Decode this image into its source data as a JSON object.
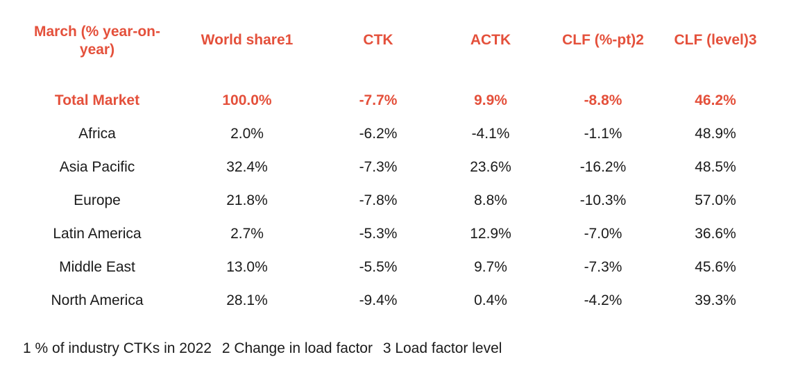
{
  "table": {
    "headers": [
      "March (% year-on-year)",
      "World share1",
      "CTK",
      "ACTK",
      "CLF (%-pt)2",
      "CLF (level)3"
    ],
    "rows": [
      [
        "Total Market",
        "100.0%",
        "-7.7%",
        "9.9%",
        "-8.8%",
        "46.2%"
      ],
      [
        "Africa",
        "2.0%",
        "-6.2%",
        "-4.1%",
        "-1.1%",
        "48.9%"
      ],
      [
        "Asia Pacific",
        "32.4%",
        "-7.3%",
        "23.6%",
        "-16.2%",
        "48.5%"
      ],
      [
        "Europe",
        "21.8%",
        "-7.8%",
        "8.8%",
        "-10.3%",
        "57.0%"
      ],
      [
        "Latin America",
        "2.7%",
        "-5.3%",
        "12.9%",
        "-7.0%",
        "36.6%"
      ],
      [
        "Middle East",
        "13.0%",
        "-5.5%",
        "9.7%",
        "-7.3%",
        "45.6%"
      ],
      [
        "North America",
        "28.1%",
        "-9.4%",
        "0.4%",
        "-4.2%",
        "39.3%"
      ]
    ]
  },
  "footnotes": [
    "1 % of industry CTKs in 2022",
    "2 Change in load factor",
    "3 Load factor level"
  ],
  "colors": {
    "accent": "#e4503b",
    "text": "#1a1a1a"
  }
}
